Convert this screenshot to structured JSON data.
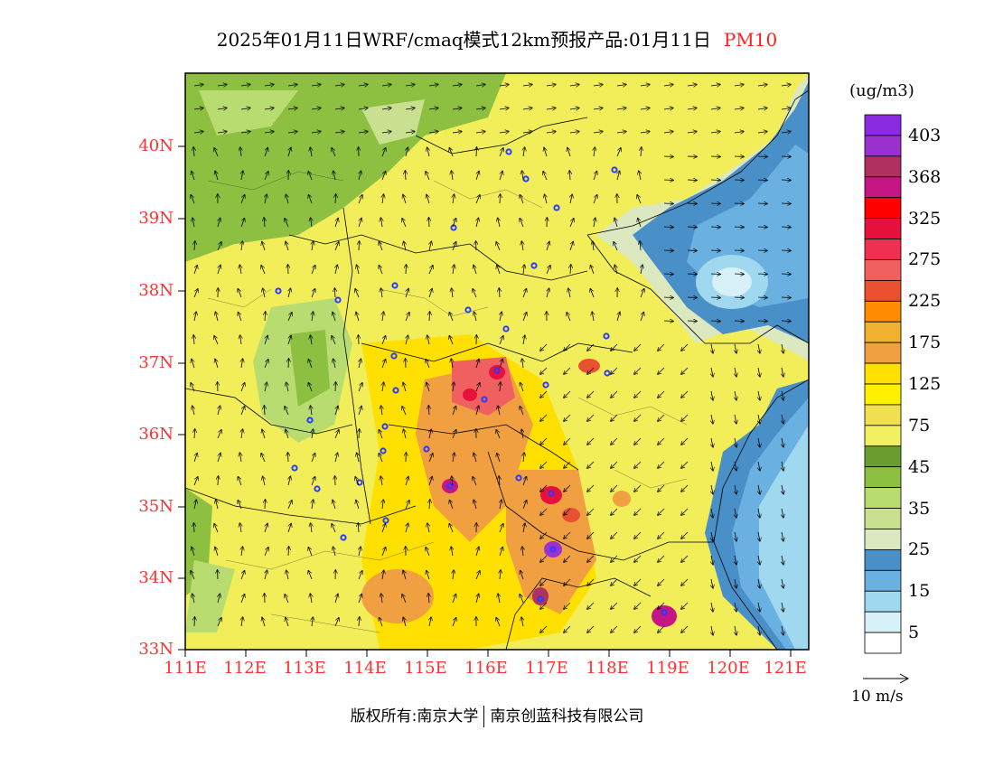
{
  "title": {
    "main": "2025年01月11日WRF/cmaq模式12km预报产品:01月11日",
    "pollutant": "PM10"
  },
  "axes": {
    "lat_labels": [
      "40N",
      "39N",
      "38N",
      "37N",
      "36N",
      "35N",
      "34N",
      "33N"
    ],
    "lon_labels": [
      "111E",
      "112E",
      "113E",
      "114E",
      "115E",
      "116E",
      "117E",
      "118E",
      "119E",
      "120E",
      "121E"
    ]
  },
  "colorbar": {
    "units": "(ug/m3)",
    "tick_labels": [
      "403",
      "368",
      "325",
      "275",
      "225",
      "175",
      "125",
      "75",
      "45",
      "35",
      "25",
      "15",
      "5"
    ],
    "colors": [
      "#8a2be2",
      "#9b30d0",
      "#b03060",
      "#c71585",
      "#ff0000",
      "#e8103c",
      "#f03050",
      "#f06060",
      "#e85030",
      "#ff8c00",
      "#f0b030",
      "#f0a040",
      "#ffe000",
      "#fff000",
      "#f0e050",
      "#f0f060",
      "#6a9f30",
      "#8dc040",
      "#b8dc70",
      "#c8e090",
      "#dce8c0",
      "#4a90c8",
      "#6ab0e0",
      "#a0d8f0",
      "#d8f0f8",
      "#ffffff"
    ]
  },
  "wind_reference": {
    "label": "10 m/s"
  },
  "footer": {
    "left": "版权所有:南京大学",
    "right": "南京创蓝科技有限公司"
  }
}
